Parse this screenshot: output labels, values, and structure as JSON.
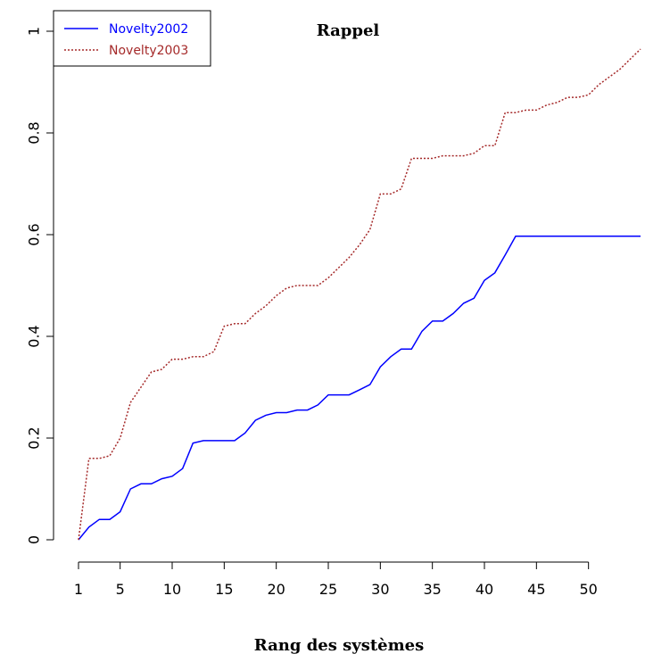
{
  "chart_data": {
    "type": "line",
    "title": "Rappel",
    "xlabel": "Rang des systèmes",
    "ylabel": "",
    "xlim": [
      1,
      55
    ],
    "ylim": [
      0,
      1
    ],
    "x_ticks": [
      1,
      5,
      10,
      15,
      20,
      25,
      30,
      35,
      40,
      45,
      50
    ],
    "y_ticks": [
      0,
      0.2,
      0.4,
      0.6,
      0.8,
      1
    ],
    "y_tick_labels": [
      "0",
      "0.2",
      "0.4",
      "0.6",
      "0.8",
      "1"
    ],
    "legend_position": "top-left",
    "x": [
      1,
      2,
      3,
      4,
      5,
      6,
      7,
      8,
      9,
      10,
      11,
      12,
      13,
      14,
      15,
      16,
      17,
      18,
      19,
      20,
      21,
      22,
      23,
      24,
      25,
      26,
      27,
      28,
      29,
      30,
      31,
      32,
      33,
      34,
      35,
      36,
      37,
      38,
      39,
      40,
      41,
      42,
      43,
      44,
      45,
      46,
      47,
      48,
      49,
      50,
      51,
      52,
      53,
      54,
      55
    ],
    "series": [
      {
        "name": "Novelty2002",
        "color": "#0000ff",
        "dash": "solid",
        "values": [
          0,
          0.025,
          0.04,
          0.04,
          0.055,
          0.1,
          0.11,
          0.11,
          0.12,
          0.125,
          0.14,
          0.19,
          0.195,
          0.195,
          0.195,
          0.195,
          0.21,
          0.235,
          0.245,
          0.25,
          0.25,
          0.255,
          0.255,
          0.265,
          0.285,
          0.285,
          0.285,
          0.295,
          0.305,
          0.34,
          0.36,
          0.375,
          0.375,
          0.41,
          0.43,
          0.43,
          0.445,
          0.465,
          0.475,
          0.51,
          0.525,
          0.56,
          0.597,
          0.597,
          0.597,
          0.597,
          0.597,
          0.597,
          0.597,
          0.597,
          0.597,
          0.597,
          0.597,
          0.597,
          0.597
        ]
      },
      {
        "name": "Novelty2003",
        "color": "#a52a2a",
        "dash": "dotted",
        "values": [
          0,
          0.16,
          0.16,
          0.165,
          0.2,
          0.27,
          0.3,
          0.33,
          0.335,
          0.355,
          0.355,
          0.36,
          0.36,
          0.37,
          0.42,
          0.425,
          0.425,
          0.445,
          0.46,
          0.48,
          0.495,
          0.5,
          0.5,
          0.5,
          0.515,
          0.535,
          0.555,
          0.58,
          0.61,
          0.68,
          0.68,
          0.69,
          0.75,
          0.75,
          0.75,
          0.755,
          0.755,
          0.755,
          0.76,
          0.775,
          0.775,
          0.84,
          0.84,
          0.845,
          0.845,
          0.855,
          0.86,
          0.87,
          0.87,
          0.875,
          0.895,
          0.91,
          0.925,
          0.945,
          0.965
        ]
      }
    ]
  }
}
